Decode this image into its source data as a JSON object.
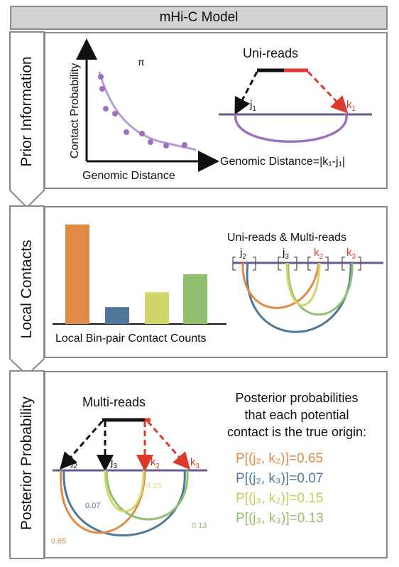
{
  "title": "mHi-C Model",
  "sections": [
    {
      "label": "Prior Information"
    },
    {
      "label": "Local Contacts"
    },
    {
      "label": "Posterior Probability"
    }
  ],
  "prior": {
    "pi_symbol": "π",
    "y_axis_label": "Contact Probability",
    "x_axis_label": "Genomic Distance",
    "uni_reads_title": "Uni-reads",
    "j_label": "j",
    "j_sub": "1",
    "k_label": "k",
    "k_sub": "1",
    "distance_formula": "Genomic Distance=|k₁-j₁|"
  },
  "local": {
    "bar_caption": "Local Bin-pair Contact Counts",
    "bars": [
      {
        "color": "#e08a45",
        "value": 1.0
      },
      {
        "color": "#4f7799",
        "value": 0.17
      },
      {
        "color": "#d2d66a",
        "value": 0.32
      },
      {
        "color": "#8fbf6f",
        "value": 0.5
      }
    ],
    "reads_title": "Uni-reads & Multi-reads",
    "loci": [
      {
        "letter": "j",
        "sub": "2",
        "color": "#111111"
      },
      {
        "letter": "j",
        "sub": "3",
        "color": "#111111"
      },
      {
        "letter": "k",
        "sub": "2",
        "color": "#e0382a"
      },
      {
        "letter": "k",
        "sub": "3",
        "color": "#e0382a"
      }
    ]
  },
  "posterior": {
    "multi_reads_title": "Multi-reads",
    "heading_lines": [
      "Posterior probabilities",
      "that each potential",
      "contact is the true origin:"
    ],
    "loci": [
      {
        "letter": "j",
        "sub": "2",
        "color": "#111111"
      },
      {
        "letter": "j",
        "sub": "3",
        "color": "#111111"
      },
      {
        "letter": "k",
        "sub": "2",
        "color": "#e0382a"
      },
      {
        "letter": "k",
        "sub": "3",
        "color": "#e0382a"
      }
    ],
    "probabilities": [
      {
        "text": "P[(j₂, k₂)]=0.65",
        "value_label": "0.65",
        "color": "#e08a45"
      },
      {
        "text": "P[(j₂, k₃)]=0.07",
        "value_label": "0.07",
        "color": "#4f7799"
      },
      {
        "text": "P[(j₃, k₂)]=0.15",
        "value_label": "0.15",
        "color": "#d2d66a"
      },
      {
        "text": "P[(j₃, k₃)]=0.13",
        "value_label": "0.13",
        "color": "#8fbf6f"
      }
    ]
  },
  "colors": {
    "purple": "#9b6fc1",
    "genome_line": "#6a5a8a",
    "red": "#e0382a",
    "border": "#8a8a8a",
    "side_fill": "#f2f2f2"
  }
}
